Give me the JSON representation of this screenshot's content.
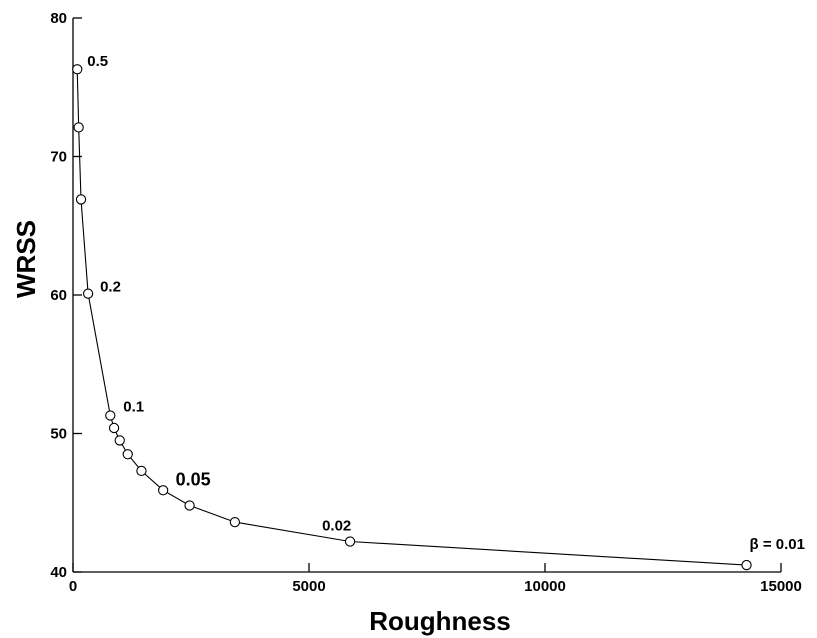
{
  "chart_data": {
    "type": "line",
    "xlabel": "Roughness",
    "ylabel": "WRSS",
    "xlim": [
      0,
      15000
    ],
    "ylim": [
      40,
      80
    ],
    "x_ticks": [
      0,
      5000,
      10000,
      15000
    ],
    "y_ticks": [
      40,
      50,
      60,
      70,
      80
    ],
    "grid": false,
    "series": [
      {
        "marker": "open-circle",
        "color": "#000000",
        "points": [
          {
            "x": 90,
            "y": 76.3
          },
          {
            "x": 120,
            "y": 72.1
          },
          {
            "x": 170,
            "y": 66.9
          },
          {
            "x": 320,
            "y": 60.1
          },
          {
            "x": 790,
            "y": 51.3
          },
          {
            "x": 870,
            "y": 50.4
          },
          {
            "x": 990,
            "y": 49.5
          },
          {
            "x": 1160,
            "y": 48.5
          },
          {
            "x": 1450,
            "y": 47.3
          },
          {
            "x": 1910,
            "y": 45.9
          },
          {
            "x": 2470,
            "y": 44.8
          },
          {
            "x": 3430,
            "y": 43.6
          },
          {
            "x": 5870,
            "y": 42.2
          },
          {
            "x": 14270,
            "y": 40.5
          }
        ]
      }
    ],
    "annotations": [
      {
        "text": "0.5",
        "point_index": 0,
        "style": "bold"
      },
      {
        "text": "0.2",
        "point_index": 3,
        "style": "bold"
      },
      {
        "text": "0.1",
        "point_index": 4,
        "style": "bold"
      },
      {
        "text": "0.05",
        "point_index": 10,
        "style": "bold-large"
      },
      {
        "text": "0.02",
        "point_index": 12,
        "style": "bold"
      },
      {
        "text": "β = 0.01",
        "point_index": 13,
        "style": "bold"
      }
    ]
  }
}
